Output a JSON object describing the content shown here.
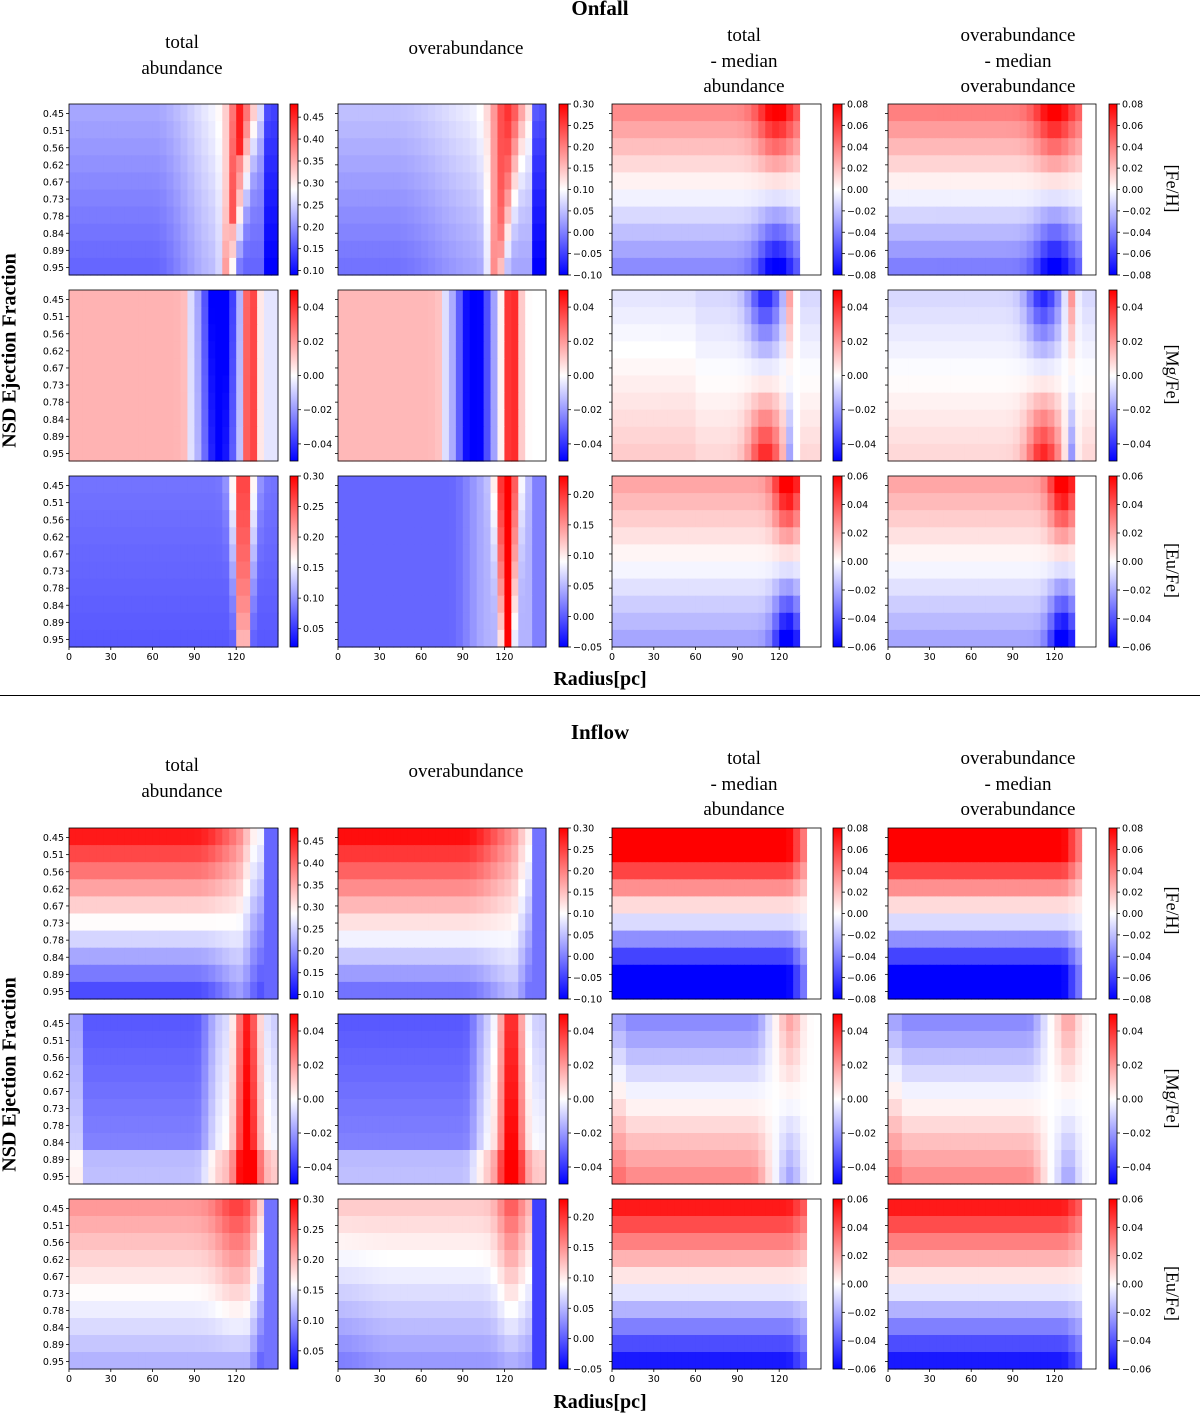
{
  "figure": {
    "xlabel": "Radius[pc]",
    "ylabel": "NSD Ejection Fraction",
    "y_ticks": [
      "0.45",
      "0.51",
      "0.56",
      "0.62",
      "0.67",
      "0.73",
      "0.78",
      "0.84",
      "0.89",
      "0.95"
    ],
    "x_ticks": [
      "0",
      "30",
      "60",
      "90",
      "120"
    ],
    "column_titles": [
      "total\nabundance",
      "overabundance",
      "total\n- median\nabundance",
      "overabundance\n- median\noverabundance"
    ],
    "row_labels": [
      "[Fe/H]",
      "[Mg/Fe]",
      "[Eu/Fe]"
    ]
  },
  "sections": [
    {
      "title": "Onfall"
    },
    {
      "title": "Inflow"
    }
  ],
  "chart_data": {
    "type": "heatmap",
    "x_range": [
      0,
      150
    ],
    "y_values": [
      0.45,
      0.51,
      0.56,
      0.62,
      0.67,
      0.73,
      0.78,
      0.84,
      0.89,
      0.95
    ],
    "colormap": "bwr",
    "colors": {
      "low": "#0000ff",
      "mid": "#ffffff",
      "high": "#ff0000"
    },
    "colorbars": [
      [
        {
          "range": [
            0.09,
            0.48
          ],
          "ticks": [
            "0.45",
            "0.40",
            "0.35",
            "0.30",
            "0.25",
            "0.20",
            "0.15",
            "0.10"
          ],
          "tickvals": [
            0.45,
            0.4,
            0.35,
            0.3,
            0.25,
            0.2,
            0.15,
            0.1
          ]
        },
        {
          "range": [
            -0.1,
            0.3
          ],
          "ticks": [
            "0.30",
            "0.25",
            "0.20",
            "0.15",
            "0.10",
            "0.05",
            "0.00",
            "−0.05",
            "−0.10"
          ],
          "tickvals": [
            0.3,
            0.25,
            0.2,
            0.15,
            0.1,
            0.05,
            0.0,
            -0.05,
            -0.1
          ]
        },
        {
          "range": [
            -0.08,
            0.08
          ],
          "ticks": [
            "0.08",
            "0.06",
            "0.04",
            "0.02",
            "0.00",
            "−0.02",
            "−0.04",
            "−0.06",
            "−0.08"
          ],
          "tickvals": [
            0.08,
            0.06,
            0.04,
            0.02,
            0.0,
            -0.02,
            -0.04,
            -0.06,
            -0.08
          ]
        },
        {
          "range": [
            -0.08,
            0.08
          ],
          "ticks": [
            "0.08",
            "0.06",
            "0.04",
            "0.02",
            "0.00",
            "−0.02",
            "−0.04",
            "−0.06",
            "−0.08"
          ],
          "tickvals": [
            0.08,
            0.06,
            0.04,
            0.02,
            0.0,
            -0.02,
            -0.04,
            -0.06,
            -0.08
          ]
        }
      ],
      [
        {
          "range": [
            -0.05,
            0.05
          ],
          "ticks": [
            "0.04",
            "0.02",
            "0.00",
            "−0.02",
            "−0.04"
          ],
          "tickvals": [
            0.04,
            0.02,
            0.0,
            -0.02,
            -0.04
          ],
          "clip_labels": true
        },
        {
          "range": [
            -0.05,
            0.05
          ],
          "ticks": [
            "0.04",
            "0.02",
            "0.00",
            "−0.02",
            "−0.04"
          ],
          "tickvals": [
            0.04,
            0.02,
            0.0,
            -0.02,
            -0.04
          ]
        },
        {
          "range": [
            -0.05,
            0.05
          ],
          "ticks": [
            "0.04",
            "0.02",
            "0.00",
            "−0.02",
            "−0.04"
          ],
          "tickvals": [
            0.04,
            0.02,
            0.0,
            -0.02,
            -0.04
          ]
        },
        {
          "range": [
            -0.05,
            0.05
          ],
          "ticks": [
            "0.04",
            "0.02",
            "0.00",
            "−0.02",
            "−0.04"
          ],
          "tickvals": [
            0.04,
            0.02,
            0.0,
            -0.02,
            -0.04
          ]
        }
      ],
      [
        {
          "range": [
            0.02,
            0.3
          ],
          "ticks": [
            "0.30",
            "0.25",
            "0.20",
            "0.15",
            "0.10",
            "0.05"
          ],
          "tickvals": [
            0.3,
            0.25,
            0.2,
            0.15,
            0.1,
            0.05
          ]
        },
        {
          "range": [
            -0.05,
            0.23
          ],
          "ticks": [
            "0.20",
            "0.15",
            "0.10",
            "0.05",
            "0.00",
            "−0.05"
          ],
          "tickvals": [
            0.2,
            0.15,
            0.1,
            0.05,
            0.0,
            -0.05
          ]
        },
        {
          "range": [
            -0.06,
            0.06
          ],
          "ticks": [
            "0.06",
            "0.04",
            "0.02",
            "0.00",
            "−0.02",
            "−0.04",
            "−0.06"
          ],
          "tickvals": [
            0.06,
            0.04,
            0.02,
            0.0,
            -0.02,
            -0.04,
            -0.06
          ]
        },
        {
          "range": [
            -0.06,
            0.06
          ],
          "ticks": [
            "0.06",
            "0.04",
            "0.02",
            "0.00",
            "−0.02",
            "−0.04",
            "−0.06"
          ],
          "tickvals": [
            0.06,
            0.04,
            0.02,
            0.0,
            -0.02,
            -0.04,
            -0.06
          ]
        }
      ]
    ],
    "panels_description": "Each section has 3 rows ([Fe/H], [Mg/Fe], [Eu/Fe]) x 4 columns; values are normalized color levels in [-1,1] (blue to red) estimated from the image."
  }
}
